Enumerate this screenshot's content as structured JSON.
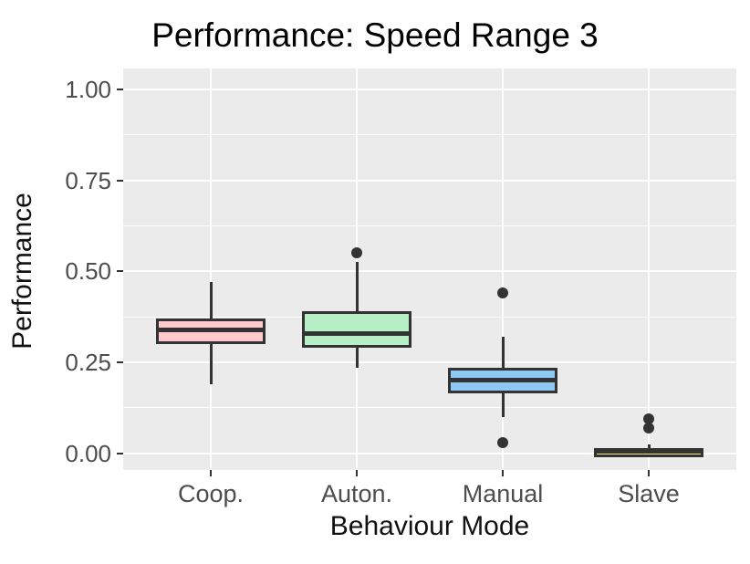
{
  "figure": {
    "title": "Performance: Speed Range 3",
    "x_axis_title": "Behaviour Mode",
    "y_axis_title": "Performance"
  },
  "chart_data": {
    "type": "boxplot",
    "title": "Performance: Speed Range 3",
    "xlabel": "Behaviour Mode",
    "ylabel": "Performance",
    "categories": [
      "Coop.",
      "Auton.",
      "Manual",
      "Slave"
    ],
    "y_tick_labels": [
      "0.00",
      "0.25",
      "0.50",
      "0.75",
      "1.00"
    ],
    "y_tick_values": [
      0.0,
      0.25,
      0.5,
      0.75,
      1.0
    ],
    "y_minor_values": [
      0.125,
      0.375,
      0.625,
      0.875
    ],
    "ylim": [
      -0.046,
      1.058
    ],
    "grid": true,
    "legend_position": "none",
    "boxes": [
      {
        "category": "Coop.",
        "whisker_low": 0.19,
        "q1": 0.3,
        "median": 0.34,
        "q3": 0.37,
        "whisker_high": 0.47,
        "outliers": [],
        "fill": "#FFC9CE"
      },
      {
        "category": "Auton.",
        "whisker_low": 0.235,
        "q1": 0.29,
        "median": 0.33,
        "q3": 0.39,
        "whisker_high": 0.525,
        "outliers": [
          0.55
        ],
        "fill": "#B7F0C6"
      },
      {
        "category": "Manual",
        "whisker_low": 0.1,
        "q1": 0.165,
        "median": 0.2,
        "q3": 0.235,
        "whisker_high": 0.32,
        "outliers": [
          0.44,
          0.03
        ],
        "fill": "#8DC9F2"
      },
      {
        "category": "Slave",
        "whisker_low": -0.01,
        "q1": -0.01,
        "median": 0.005,
        "q3": 0.015,
        "whisker_high": 0.025,
        "outliers": [
          0.095,
          0.07
        ],
        "fill": "#F6E785"
      }
    ],
    "style": {
      "panel_bg": "#EBEBEB",
      "grid_color": "#FFFFFF",
      "stroke_color": "#333333",
      "tick_label_color": "#4D4D4D",
      "axis_title_color": "#111111",
      "title_color": "#000000"
    }
  }
}
